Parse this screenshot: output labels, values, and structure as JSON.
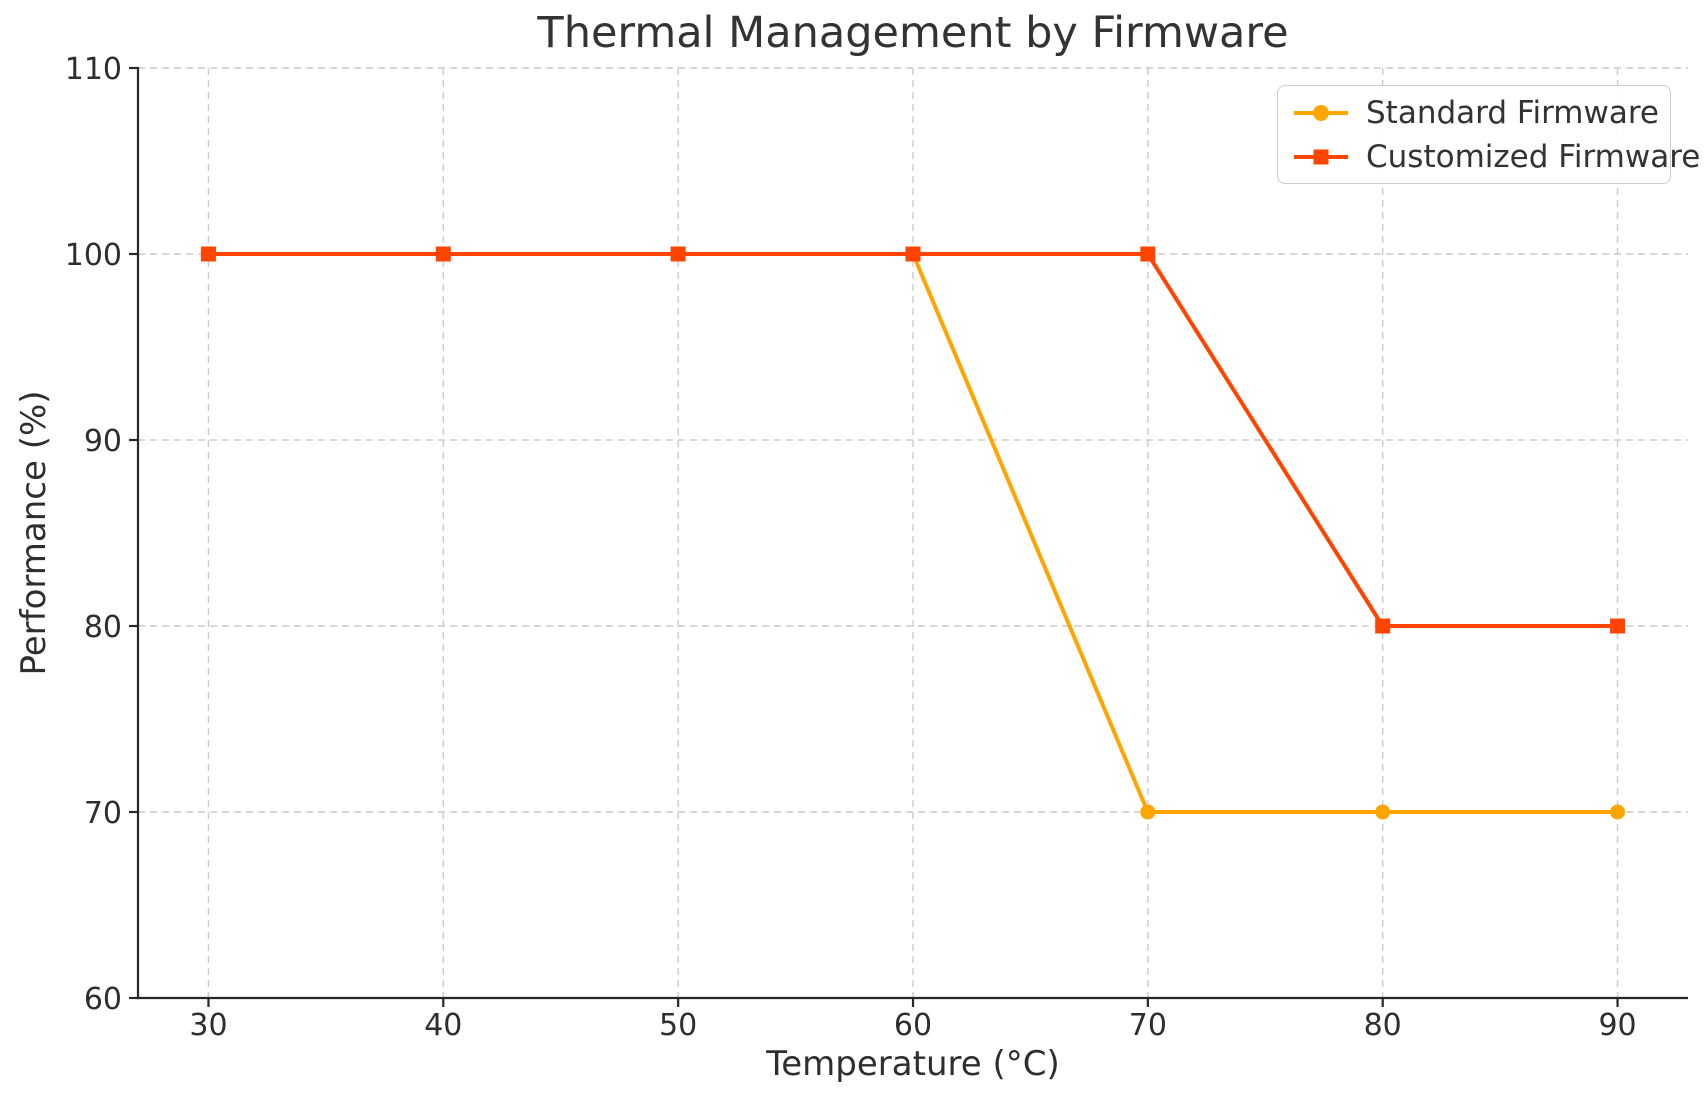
{
  "figure": {
    "background": "#ffffff"
  },
  "chart_data": {
    "type": "line",
    "title": "Thermal Management by Firmware",
    "xlabel": "Temperature (°C)",
    "ylabel": "Performance (%)",
    "x": [
      30,
      40,
      50,
      60,
      70,
      80,
      90
    ],
    "series": [
      {
        "name": "Standard Firmware",
        "color": "#FFA500",
        "marker": "circle",
        "values": [
          100,
          100,
          100,
          100,
          70,
          70,
          70
        ]
      },
      {
        "name": "Customized Firmware",
        "color": "#FF4500",
        "marker": "square",
        "values": [
          100,
          100,
          100,
          100,
          100,
          80,
          80
        ]
      }
    ],
    "xticks": [
      30,
      40,
      50,
      60,
      70,
      80,
      90
    ],
    "yticks": [
      60,
      70,
      80,
      90,
      100,
      110
    ],
    "xlim": [
      27,
      93
    ],
    "ylim": [
      60,
      110
    ],
    "grid": true,
    "grid_color": "#cccccc",
    "grid_style": "dashed",
    "axis_color": "#262626",
    "text_color": "#2e2e2e",
    "title_color": "#333333",
    "legend_position": "upper right",
    "legend_border_color": "#cccccc",
    "legend_background": "#ffffff"
  }
}
